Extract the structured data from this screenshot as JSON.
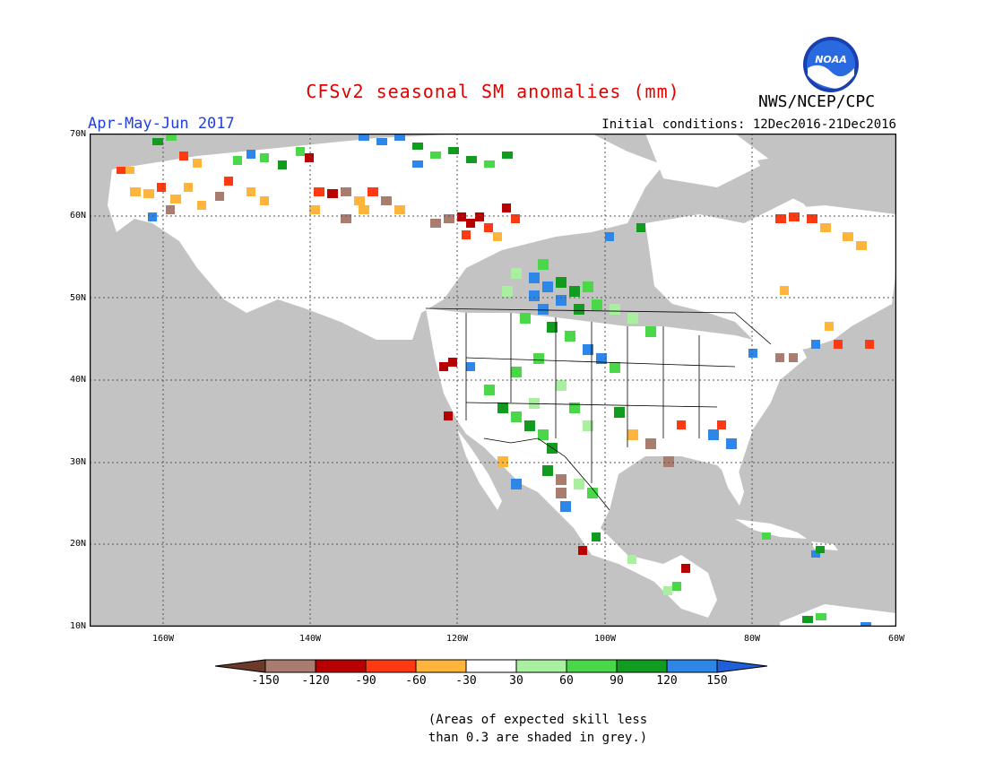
{
  "header": {
    "title": "CFSv2 seasonal SM anomalies (mm)",
    "period": "Apr-May-Jun 2017",
    "initial_conditions": "Initial conditions: 12Dec2016-21Dec2016",
    "agency": "NWS/NCEP/CPC",
    "logo_text": "NOAA"
  },
  "map": {
    "lat_labels": [
      "70N",
      "60N",
      "50N",
      "40N",
      "30N",
      "20N",
      "10N"
    ],
    "lon_labels": [
      "160W",
      "140W",
      "120W",
      "100W",
      "80W",
      "60W"
    ]
  },
  "legend": {
    "labels": [
      "-150",
      "-120",
      "-90",
      "-60",
      "-30",
      "30",
      "60",
      "90",
      "120",
      "150"
    ],
    "colors": [
      "#6b3a2a",
      "#a87c6e",
      "#b80000",
      "#ff3a12",
      "#ffb43c",
      "#ffffff",
      "#a8f0a0",
      "#4ad84a",
      "#119c20",
      "#2e86e8",
      "#1f5fd8"
    ]
  },
  "colors": {
    "grey_mask": "#c3c3c3",
    "title": "#e00000",
    "period": "#2040e0"
  },
  "note": {
    "line1": "(Areas of expected skill less",
    "line2": "than 0.3 are shaded in grey.)"
  }
}
